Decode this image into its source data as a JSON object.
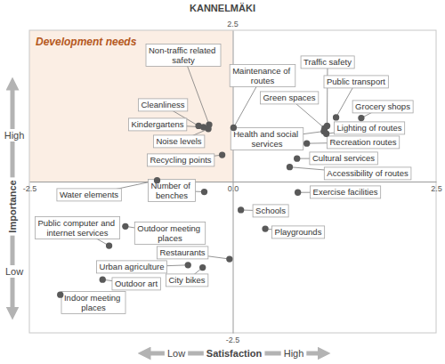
{
  "chart_data": {
    "type": "scatter",
    "title": "KANNELMÄKI",
    "x_label": "Satisfaction",
    "y_label": "Importance",
    "x_axis_ends": [
      "Low",
      "High"
    ],
    "y_axis_ends": [
      "Low",
      "High"
    ],
    "annotations": [
      "Development needs"
    ],
    "labels": [
      "Cleanliness",
      "Kindergartens",
      "Non-traffic related safety",
      "Noise levels",
      "Recycling points",
      "Maintenance of routes",
      "Traffic safety",
      "Public transport",
      "Green spaces",
      "Grocery shops",
      "Health and social services",
      "Lighting of routes",
      "Recreation routes",
      "Cultural services",
      "Accessibility of routes",
      "Exercise facilities",
      "Schools",
      "Playgrounds",
      "Water elements",
      "Number of benches",
      "Public computer and internet services",
      "Outdoor meeting places",
      "Urban agriculture",
      "Restaurants",
      "Outdoor art",
      "City bikes",
      "Indoor meeting places"
    ],
    "x": [
      -0.42,
      -0.36,
      -0.29,
      -0.3,
      -0.13,
      0.01,
      1.16,
      1.27,
      1.13,
      1.58,
      1.12,
      1.15,
      0.91,
      0.79,
      0.7,
      0.8,
      0.1,
      0.4,
      -0.93,
      -0.35,
      -1.52,
      -1.32,
      -0.55,
      -0.04,
      -1.6,
      -0.37,
      -2.12
    ],
    "values": [
      0.92,
      0.9,
      0.94,
      0.87,
      0.44,
      0.89,
      0.92,
      1.06,
      0.88,
      1.05,
      0.83,
      0.79,
      0.63,
      0.38,
      0.24,
      -0.18,
      -0.47,
      -0.78,
      0.02,
      -0.17,
      -1.06,
      -0.74,
      -1.38,
      -1.28,
      -1.62,
      -1.42,
      -1.87
    ],
    "color": "#595959",
    "marker": "circle",
    "xlim": [
      -2.5,
      2.5
    ],
    "ylim": [
      -2.5,
      2.5
    ],
    "xticks": [
      -2.5,
      {
        "value": 0,
        "label": "0.0"
      },
      2.5
    ],
    "yticks": [
      -2.5,
      2.5
    ],
    "grid": false
  }
}
